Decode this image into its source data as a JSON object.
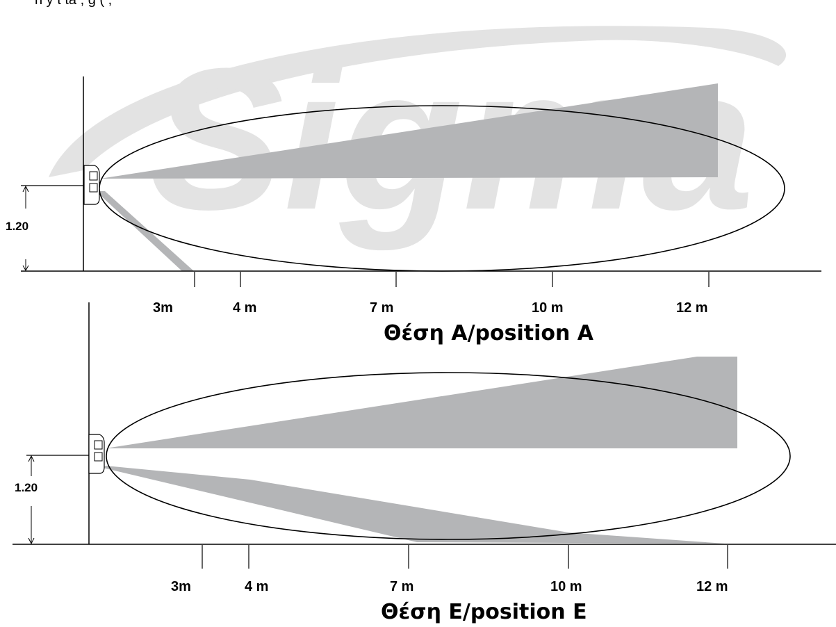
{
  "header_fragment": "n       y       t             ta         ,        g      (                               ,",
  "watermark": {
    "text": "Sigma",
    "color": "#e3e3e3"
  },
  "colors": {
    "beam": "#b4b5b7",
    "outline": "#000000",
    "sensor_fill": "#ffffff"
  },
  "diagrams": [
    {
      "id": "position-a",
      "caption": "Θέση A/position A",
      "height_label": "1.20",
      "ticks": [
        {
          "label": "3m",
          "distance_m": 3
        },
        {
          "label": "4 m",
          "distance_m": 4
        },
        {
          "label": "7 m",
          "distance_m": 7
        },
        {
          "label": "10 m",
          "distance_m": 10
        },
        {
          "label": "12 m",
          "distance_m": 12
        }
      ]
    },
    {
      "id": "position-e",
      "caption": "Θέση E/position E",
      "height_label": "1.20",
      "ticks": [
        {
          "label": "3m",
          "distance_m": 3
        },
        {
          "label": "4 m",
          "distance_m": 4
        },
        {
          "label": "7 m",
          "distance_m": 7
        },
        {
          "label": "10 m",
          "distance_m": 10
        },
        {
          "label": "12 m",
          "distance_m": 12
        }
      ]
    }
  ]
}
